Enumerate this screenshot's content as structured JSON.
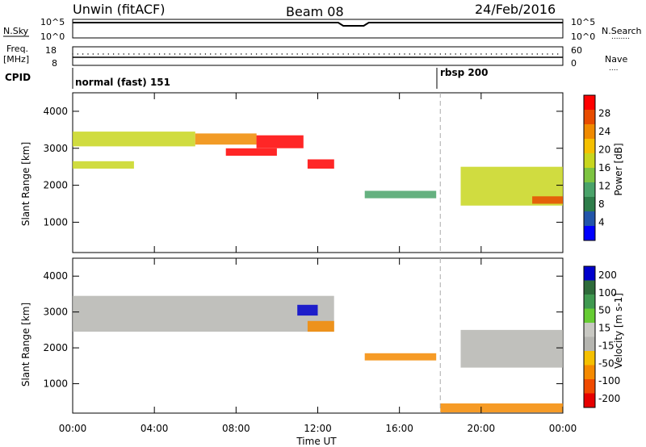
{
  "header": {
    "station": "Unwin (fitACF)",
    "beam": "Beam 08",
    "date": "24/Feb/2016"
  },
  "top_panels": {
    "nsky_label": "N.Sky",
    "nsearch_label": "N.Search",
    "nsearch_marker": "........",
    "nsky_ticks": [
      "10^5",
      "10^0"
    ],
    "nsearch_ticks": [
      "10^5",
      "10^0"
    ],
    "freq_label": "Freq.",
    "freq_unit": "[MHz]",
    "freq_ticks": [
      "18",
      "8"
    ],
    "nave_label": "Nave",
    "nave_marker": "....",
    "nave_ticks": [
      "60",
      "0"
    ],
    "cpid_label": "CPID",
    "cpid_segments": [
      {
        "name": "normal (fast) 151"
      },
      {
        "name": "rbsp 200"
      }
    ]
  },
  "colors": {
    "power_scale": [
      "#0000ff",
      "#2255aa",
      "#2e7d4a",
      "#4aa36a",
      "#7dc441",
      "#c8d61e",
      "#f5c000",
      "#f08a00",
      "#e84c00",
      "#ff0000"
    ],
    "velocity_scale": [
      "#e60000",
      "#f04a00",
      "#f58a00",
      "#f5c000",
      "#b5b5b0",
      "#c8c8c2",
      "#66cc33",
      "#3f9950",
      "#2e6b3a",
      "#0000cc"
    ]
  },
  "power_colorbar": {
    "label": "Power [dB]",
    "ticks": [
      "28",
      "24",
      "20",
      "16",
      "12",
      "8",
      "4"
    ]
  },
  "velocity_colorbar": {
    "label": "Velocity [m s-1]",
    "ticks": [
      "200",
      "100",
      "50",
      "15",
      "-15",
      "-50",
      "-100",
      "-200"
    ]
  },
  "chart_data": [
    {
      "type": "heatmap",
      "title": "",
      "xlabel": "Time UT",
      "ylabel": "Slant Range [km]",
      "xlim": [
        "00:00",
        "24:00"
      ],
      "ylim": [
        180,
        4500
      ],
      "x_ticks": [
        "00:00",
        "04:00",
        "08:00",
        "12:00",
        "16:00",
        "20:00",
        "00:00"
      ],
      "y_ticks": [
        "1000",
        "2000",
        "3000",
        "4000"
      ],
      "colorbar": "Power [dB]",
      "mode_change_time": "18:00",
      "echo_regions": [
        {
          "t0": 0.0,
          "t1": 6.0,
          "r0": 3050,
          "r1": 3450,
          "value_db": 16
        },
        {
          "t0": 0.0,
          "t1": 3.0,
          "r0": 2450,
          "r1": 2650,
          "value_db": 14
        },
        {
          "t0": 6.0,
          "t1": 9.0,
          "r0": 3100,
          "r1": 3400,
          "value_db": 22
        },
        {
          "t0": 7.5,
          "t1": 10.0,
          "r0": 2800,
          "r1": 3000,
          "value_db": 30
        },
        {
          "t0": 9.0,
          "t1": 11.3,
          "r0": 3000,
          "r1": 3350,
          "value_db": 30
        },
        {
          "t0": 11.5,
          "t1": 12.8,
          "r0": 2450,
          "r1": 2700,
          "value_db": 28
        },
        {
          "t0": 14.3,
          "t1": 17.8,
          "r0": 1650,
          "r1": 1850,
          "value_db": 10
        },
        {
          "t0": 19.0,
          "t1": 24.0,
          "r0": 1450,
          "r1": 2500,
          "value_db": 16
        },
        {
          "t0": 22.5,
          "t1": 24.0,
          "r0": 1500,
          "r1": 1700,
          "value_db": 24
        }
      ]
    },
    {
      "type": "heatmap",
      "title": "",
      "xlabel": "Time UT",
      "ylabel": "Slant Range [km]",
      "xlim": [
        "00:00",
        "24:00"
      ],
      "ylim": [
        180,
        4500
      ],
      "x_ticks": [
        "00:00",
        "04:00",
        "08:00",
        "12:00",
        "16:00",
        "20:00",
        "00:00"
      ],
      "y_ticks": [
        "1000",
        "2000",
        "3000",
        "4000"
      ],
      "colorbar": "Velocity [m s-1]",
      "mode_change_time": "18:00",
      "echo_regions": [
        {
          "t0": 0.0,
          "t1": 12.8,
          "r0": 2450,
          "r1": 3450,
          "value_ms": 0
        },
        {
          "t0": 11.0,
          "t1": 12.0,
          "r0": 2900,
          "r1": 3200,
          "value_ms": 200
        },
        {
          "t0": 11.5,
          "t1": 12.8,
          "r0": 2450,
          "r1": 2750,
          "value_ms": -80
        },
        {
          "t0": 14.3,
          "t1": 17.8,
          "r0": 1650,
          "r1": 1850,
          "value_ms": -60
        },
        {
          "t0": 19.0,
          "t1": 24.0,
          "r0": 1450,
          "r1": 2500,
          "value_ms": 0
        },
        {
          "t0": 18.0,
          "t1": 24.0,
          "r0": 200,
          "r1": 450,
          "value_ms": -60
        }
      ]
    }
  ]
}
